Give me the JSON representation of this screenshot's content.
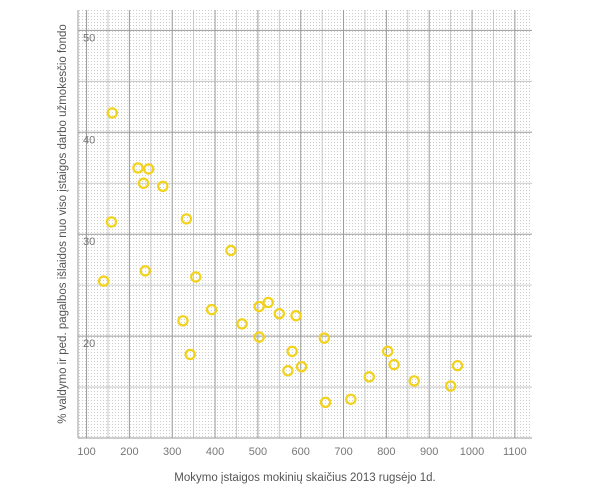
{
  "chart_data": {
    "type": "scatter",
    "title": "",
    "xlabel": "Mokymo įstaigos mokinių skaičius 2013 rugsėjo 1d.",
    "ylabel": "% valdymo ir ped. pagalbos išlaidos nuo viso įstaigos darbo užmokesčio fondo",
    "xlim": [
      80,
      1140
    ],
    "ylim": [
      10,
      52
    ],
    "xticks": [
      100,
      200,
      300,
      400,
      500,
      600,
      700,
      800,
      900,
      1000,
      1100
    ],
    "yticks": [
      20,
      30,
      40,
      50
    ],
    "grid": true,
    "marker_color": "#f2d21a",
    "series": [
      {
        "points": [
          {
            "x": 160,
            "y": 41.9
          },
          {
            "x": 158,
            "y": 31.2
          },
          {
            "x": 140,
            "y": 25.4
          },
          {
            "x": 220,
            "y": 36.5
          },
          {
            "x": 245,
            "y": 36.4
          },
          {
            "x": 233,
            "y": 35.0
          },
          {
            "x": 278,
            "y": 34.7
          },
          {
            "x": 237,
            "y": 26.4
          },
          {
            "x": 333,
            "y": 31.5
          },
          {
            "x": 355,
            "y": 25.8
          },
          {
            "x": 325,
            "y": 21.5
          },
          {
            "x": 342,
            "y": 18.2
          },
          {
            "x": 392,
            "y": 22.6
          },
          {
            "x": 437,
            "y": 28.4
          },
          {
            "x": 463,
            "y": 21.2
          },
          {
            "x": 503,
            "y": 22.9
          },
          {
            "x": 524,
            "y": 23.3
          },
          {
            "x": 503,
            "y": 19.9
          },
          {
            "x": 550,
            "y": 22.2
          },
          {
            "x": 589,
            "y": 22.0
          },
          {
            "x": 580,
            "y": 18.5
          },
          {
            "x": 570,
            "y": 16.6
          },
          {
            "x": 602,
            "y": 17.0
          },
          {
            "x": 655,
            "y": 19.8
          },
          {
            "x": 658,
            "y": 13.5
          },
          {
            "x": 717,
            "y": 13.8
          },
          {
            "x": 760,
            "y": 16.0
          },
          {
            "x": 803,
            "y": 18.5
          },
          {
            "x": 818,
            "y": 17.2
          },
          {
            "x": 865,
            "y": 15.6
          },
          {
            "x": 950,
            "y": 15.1
          },
          {
            "x": 966,
            "y": 17.1
          }
        ]
      }
    ]
  }
}
